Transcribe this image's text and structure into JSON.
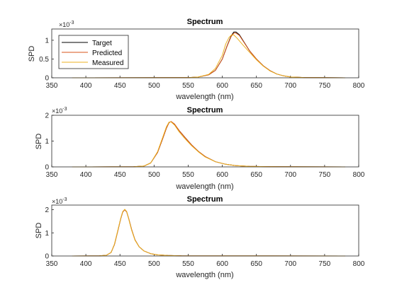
{
  "chart_data": [
    {
      "type": "line",
      "title": "Spectrum",
      "xlabel": "wavelength (nm)",
      "ylabel": "SPD",
      "exponent_label": "×10",
      "exponent_power": "-3",
      "xlim": [
        350,
        800
      ],
      "ylim": [
        0,
        1.3
      ],
      "xticks": [
        "350",
        "400",
        "450",
        "500",
        "550",
        "600",
        "650",
        "700",
        "750",
        "800"
      ],
      "yticks": [
        {
          "v": 0,
          "label": "0"
        },
        {
          "v": 0.5,
          "label": "0.5"
        },
        {
          "v": 1,
          "label": "1"
        }
      ],
      "grid": false,
      "legend": {
        "position": "top-left"
      },
      "series": [
        {
          "name": "Target",
          "color": "#000000",
          "x": [
            380,
            550,
            565,
            580,
            590,
            600,
            607,
            613,
            617,
            620,
            625,
            632,
            640,
            650,
            660,
            670,
            680,
            690,
            700,
            720,
            740,
            780
          ],
          "y": [
            0.0,
            0.005,
            0.02,
            0.08,
            0.2,
            0.5,
            0.85,
            1.12,
            1.22,
            1.22,
            1.15,
            0.95,
            0.72,
            0.5,
            0.32,
            0.19,
            0.1,
            0.05,
            0.02,
            0.008,
            0.004,
            0.0
          ]
        },
        {
          "name": "Predicted",
          "color": "#d95319",
          "x": [
            380,
            550,
            565,
            580,
            590,
            600,
            607,
            613,
            617,
            620,
            625,
            632,
            640,
            650,
            660,
            670,
            680,
            690,
            700,
            720,
            740,
            780
          ],
          "y": [
            0.0,
            0.005,
            0.02,
            0.08,
            0.2,
            0.5,
            0.84,
            1.1,
            1.19,
            1.19,
            1.13,
            0.94,
            0.72,
            0.5,
            0.32,
            0.19,
            0.1,
            0.05,
            0.02,
            0.008,
            0.004,
            0.0
          ]
        },
        {
          "name": "Measured",
          "color": "#edb120",
          "x": [
            380,
            550,
            565,
            580,
            590,
            600,
            605,
            610,
            614,
            617,
            622,
            630,
            640,
            650,
            660,
            670,
            680,
            690,
            700,
            720,
            740,
            780
          ],
          "y": [
            0.0,
            0.005,
            0.02,
            0.09,
            0.25,
            0.6,
            0.9,
            1.08,
            1.15,
            1.14,
            1.05,
            0.88,
            0.68,
            0.48,
            0.31,
            0.18,
            0.1,
            0.05,
            0.02,
            0.008,
            0.004,
            0.0
          ]
        }
      ]
    },
    {
      "type": "line",
      "title": "Spectrum",
      "xlabel": "wavelength (nm)",
      "ylabel": "SPD",
      "exponent_label": "×10",
      "exponent_power": "-3",
      "xlim": [
        350,
        800
      ],
      "ylim": [
        0,
        2
      ],
      "xticks": [
        "350",
        "400",
        "450",
        "500",
        "550",
        "600",
        "650",
        "700",
        "750",
        "800"
      ],
      "yticks": [
        {
          "v": 0,
          "label": "0"
        },
        {
          "v": 1,
          "label": "1"
        },
        {
          "v": 2,
          "label": "2"
        }
      ],
      "grid": false,
      "series": [
        {
          "name": "Target",
          "color": "#000000",
          "x": [
            380,
            470,
            485,
            495,
            505,
            512,
            518,
            522,
            525,
            530,
            537,
            545,
            555,
            565,
            575,
            590,
            605,
            620,
            640,
            680,
            780
          ],
          "y": [
            0.0,
            0.005,
            0.03,
            0.15,
            0.55,
            1.05,
            1.5,
            1.72,
            1.75,
            1.65,
            1.4,
            1.15,
            0.85,
            0.6,
            0.4,
            0.2,
            0.1,
            0.05,
            0.02,
            0.005,
            0.0
          ]
        },
        {
          "name": "Predicted",
          "color": "#d95319",
          "x": [
            380,
            470,
            485,
            495,
            505,
            512,
            518,
            522,
            525,
            530,
            537,
            545,
            555,
            565,
            575,
            590,
            605,
            620,
            640,
            680,
            780
          ],
          "y": [
            0.0,
            0.005,
            0.03,
            0.15,
            0.55,
            1.05,
            1.5,
            1.72,
            1.76,
            1.66,
            1.4,
            1.15,
            0.85,
            0.6,
            0.4,
            0.2,
            0.1,
            0.05,
            0.02,
            0.005,
            0.0
          ]
        },
        {
          "name": "Measured",
          "color": "#edb120",
          "x": [
            380,
            470,
            485,
            495,
            505,
            512,
            518,
            522,
            525,
            530,
            537,
            545,
            555,
            565,
            575,
            590,
            605,
            620,
            640,
            680,
            780
          ],
          "y": [
            0.0,
            0.005,
            0.03,
            0.15,
            0.58,
            1.1,
            1.55,
            1.74,
            1.74,
            1.62,
            1.35,
            1.1,
            0.82,
            0.58,
            0.38,
            0.2,
            0.1,
            0.05,
            0.02,
            0.005,
            0.0
          ]
        }
      ]
    },
    {
      "type": "line",
      "title": "Spectrum",
      "xlabel": "wavelength (nm)",
      "ylabel": "SPD",
      "exponent_label": "×10",
      "exponent_power": "-3",
      "xlim": [
        350,
        800
      ],
      "ylim": [
        0,
        2.2
      ],
      "xticks": [
        "350",
        "400",
        "450",
        "500",
        "550",
        "600",
        "650",
        "700",
        "750",
        "800"
      ],
      "yticks": [
        {
          "v": 0,
          "label": "0"
        },
        {
          "v": 1,
          "label": "1"
        },
        {
          "v": 2,
          "label": "2"
        }
      ],
      "grid": false,
      "series": [
        {
          "name": "Target",
          "color": "#000000",
          "x": [
            380,
            420,
            430,
            437,
            442,
            447,
            451,
            454,
            457,
            460,
            463,
            467,
            472,
            478,
            485,
            495,
            505,
            520,
            540,
            780
          ],
          "y": [
            0.0,
            0.005,
            0.03,
            0.15,
            0.5,
            1.1,
            1.6,
            1.9,
            2.0,
            1.9,
            1.6,
            1.15,
            0.7,
            0.4,
            0.22,
            0.1,
            0.05,
            0.02,
            0.005,
            0.0
          ]
        },
        {
          "name": "Predicted",
          "color": "#d95319",
          "x": [
            380,
            420,
            430,
            437,
            442,
            447,
            451,
            454,
            457,
            460,
            463,
            467,
            472,
            478,
            485,
            495,
            505,
            520,
            540,
            780
          ],
          "y": [
            0.0,
            0.005,
            0.03,
            0.15,
            0.5,
            1.1,
            1.6,
            1.9,
            2.0,
            1.9,
            1.6,
            1.15,
            0.7,
            0.4,
            0.22,
            0.1,
            0.05,
            0.02,
            0.005,
            0.0
          ]
        },
        {
          "name": "Measured",
          "color": "#edb120",
          "x": [
            380,
            420,
            430,
            437,
            442,
            447,
            451,
            454,
            457,
            460,
            463,
            467,
            472,
            478,
            485,
            495,
            505,
            520,
            540,
            780
          ],
          "y": [
            0.0,
            0.005,
            0.03,
            0.15,
            0.52,
            1.12,
            1.62,
            1.92,
            2.02,
            1.92,
            1.58,
            1.12,
            0.68,
            0.4,
            0.22,
            0.1,
            0.05,
            0.02,
            0.005,
            0.0
          ]
        }
      ]
    }
  ]
}
